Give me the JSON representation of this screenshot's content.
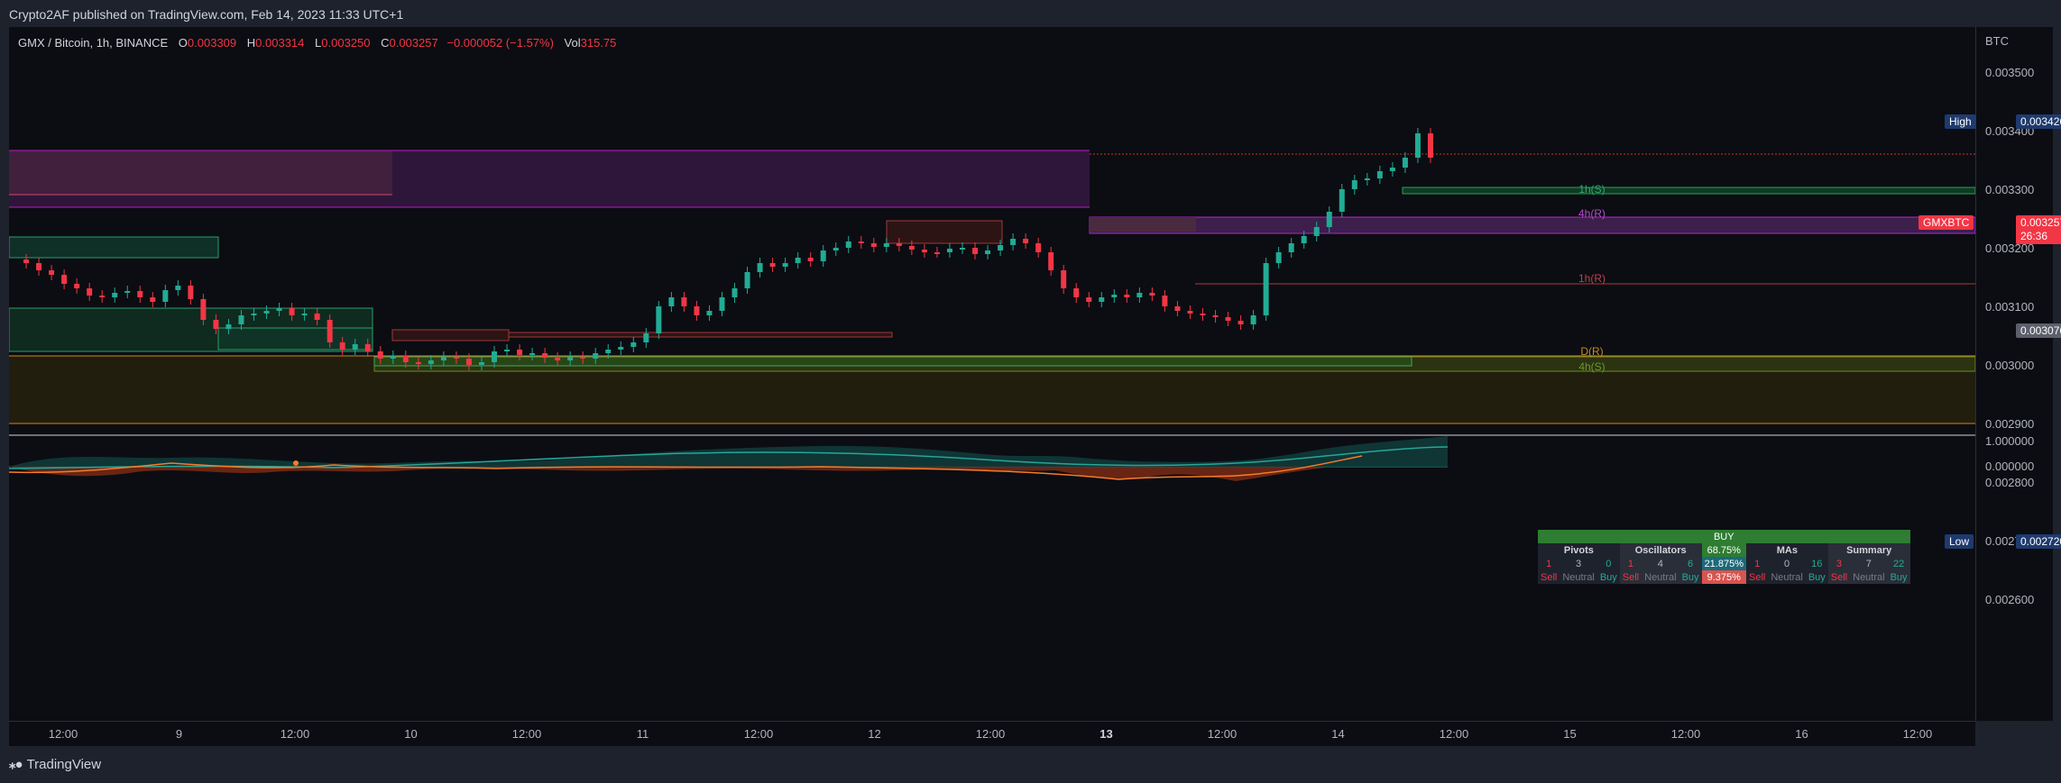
{
  "header": {
    "published": "Crypto2AF published on TradingView.com, Feb 14, 2023 11:33 UTC+1"
  },
  "legend": {
    "symbol": "GMX / Bitcoin, 1h, BINANCE",
    "o_label": "O",
    "o": "0.003309",
    "h_label": "H",
    "h": "0.003314",
    "l_label": "L",
    "l": "0.003250",
    "c_label": "C",
    "c": "0.003257",
    "change": "−0.000052 (−1.57%)",
    "vol_label": "Vol",
    "vol": "315.75"
  },
  "price_axis": {
    "unit": "BTC",
    "ticks": [
      "0.003500",
      "0.003400",
      "0.003300",
      "0.003200",
      "0.003100",
      "0.003000",
      "0.002900",
      "0.002800",
      "0.002700",
      "0.002600"
    ],
    "osc_ticks": [
      "1.000000",
      "0.000000"
    ],
    "high": {
      "label": "High",
      "value": "0.003426"
    },
    "low": {
      "label": "Low",
      "value": "0.002720"
    },
    "current": {
      "symbol": "GMXBTC",
      "price": "0.003257",
      "countdown": "26:36"
    },
    "level_tag": "0.003076"
  },
  "levels": {
    "s1h_upper": "1h(S)",
    "r4h": "4h(R)",
    "r1h": "1h(R)",
    "rd": "D(R)",
    "s4h": "4h(S)"
  },
  "time_axis": {
    "labels": [
      {
        "t": "12:00",
        "bold": false
      },
      {
        "t": "9",
        "bold": false
      },
      {
        "t": "12:00",
        "bold": false
      },
      {
        "t": "10",
        "bold": false
      },
      {
        "t": "12:00",
        "bold": false
      },
      {
        "t": "11",
        "bold": false
      },
      {
        "t": "12:00",
        "bold": false
      },
      {
        "t": "12",
        "bold": false
      },
      {
        "t": "12:00",
        "bold": false
      },
      {
        "t": "13",
        "bold": true
      },
      {
        "t": "12:00",
        "bold": false
      },
      {
        "t": "14",
        "bold": false
      },
      {
        "t": "12:00",
        "bold": false
      },
      {
        "t": "15",
        "bold": false
      },
      {
        "t": "12:00",
        "bold": false
      },
      {
        "t": "16",
        "bold": false
      },
      {
        "t": "12:00",
        "bold": false
      }
    ]
  },
  "technicals": {
    "title": "BUY",
    "headers": [
      "Pivots",
      "Oscillators",
      "68.75%",
      "MAs",
      "Summary"
    ],
    "counts": [
      "1",
      "3",
      "0",
      "1",
      "4",
      "6",
      "21.875%",
      "1",
      "0",
      "16",
      "3",
      "7",
      "22"
    ],
    "labels": [
      "Sell",
      "Neutral",
      "Buy",
      "Sell",
      "Neutral",
      "Buy",
      "9.375%",
      "Sell",
      "Neutral",
      "Buy",
      "Sell",
      "Neutral",
      "Buy"
    ]
  },
  "brand": {
    "name": "TradingView"
  },
  "colors": {
    "up": "#22ab94",
    "down": "#f23645",
    "background": "#0b0d12",
    "purple_zone": "#9c27b0",
    "green_zone": "#1b5e20"
  }
}
